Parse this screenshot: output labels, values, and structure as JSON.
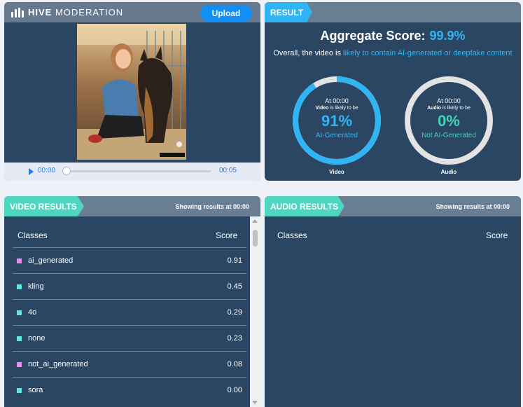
{
  "header": {
    "brand_bold": "HIVE",
    "brand_rest": "MODERATION",
    "upload_label": "Upload"
  },
  "player": {
    "current_time": "00:00",
    "end_time": "00:05",
    "progress": 0
  },
  "result": {
    "tag": "RESULT",
    "aggregate_label": "Aggregate Score:",
    "aggregate_value": "99.9%",
    "overall_prefix": "Overall, the video is",
    "overall_highlight": "likely to contain AI-generated or deepfake content",
    "video": {
      "at": "At 00:00",
      "kind": "Video",
      "likely": "is likely to be",
      "percent": "91%",
      "label": "AI-Generated",
      "caption": "Video",
      "fraction": 0.91,
      "color": "#30b4f3"
    },
    "audio": {
      "at": "At 00:00",
      "kind": "Audio",
      "likely": "is likely to be",
      "percent": "0%",
      "label": "Not AI-Generated",
      "caption": "Audio",
      "fraction": 0,
      "color": "#3fd6b7"
    }
  },
  "video_results": {
    "tag": "VIDEO RESULTS",
    "showing": "Showing results at 00:00",
    "col_classes": "Classes",
    "col_score": "Score",
    "rows": [
      {
        "name": "ai_generated",
        "score": "0.91",
        "color": "#e98ef0"
      },
      {
        "name": "kling",
        "score": "0.45",
        "color": "#69e3e0"
      },
      {
        "name": "4o",
        "score": "0.29",
        "color": "#69e3e0"
      },
      {
        "name": "none",
        "score": "0.23",
        "color": "#69e3e0"
      },
      {
        "name": "not_ai_generated",
        "score": "0.08",
        "color": "#e98ef0"
      },
      {
        "name": "sora",
        "score": "0.00",
        "color": "#69e3e0"
      }
    ]
  },
  "audio_results": {
    "tag": "AUDIO RESULTS",
    "showing": "Showing results at 00:00",
    "col_classes": "Classes",
    "col_score": "Score"
  }
}
